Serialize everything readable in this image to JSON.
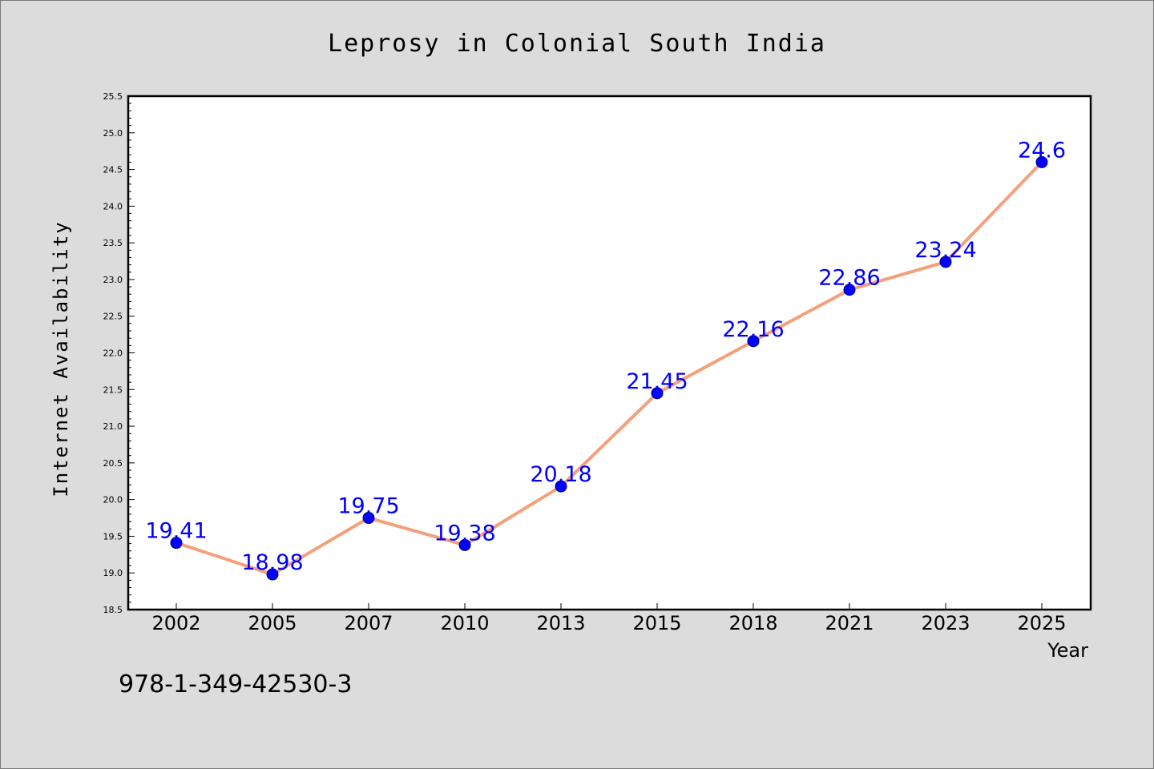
{
  "chart_data": {
    "type": "line",
    "title": "Leprosy in Colonial South India",
    "xlabel": "Year",
    "ylabel": "Internet Availability",
    "categories": [
      "2002",
      "2005",
      "2007",
      "2010",
      "2013",
      "2015",
      "2018",
      "2021",
      "2023",
      "2025"
    ],
    "series": [
      {
        "values": [
          19.41,
          18.98,
          19.75,
          19.38,
          20.18,
          21.45,
          22.16,
          22.86,
          23.24,
          24.6
        ],
        "data_labels": [
          "19.41",
          "18.98",
          "19.75",
          "19.38",
          "20.18",
          "21.45",
          "22.16",
          "22.86",
          "23.24",
          "24.6"
        ],
        "line_color": "#f4a07a",
        "marker_color": "#0000ff"
      }
    ],
    "ylim": [
      18.5,
      25.5
    ],
    "y_ticks": [
      "18.5",
      "19.0",
      "19.5",
      "20.0",
      "20.5",
      "21.0",
      "21.5",
      "22.0",
      "22.5",
      "23.0",
      "23.5",
      "24.0",
      "24.5",
      "25.0",
      "25.5"
    ],
    "grid": false,
    "legend": "none"
  },
  "footnote": "978-1-349-42530-3",
  "colors": {
    "background": "#dcdcdc",
    "plot_background": "#ffffff",
    "line": "#f4a07a",
    "marker": "#0000ff",
    "data_label": "#0000ff"
  }
}
